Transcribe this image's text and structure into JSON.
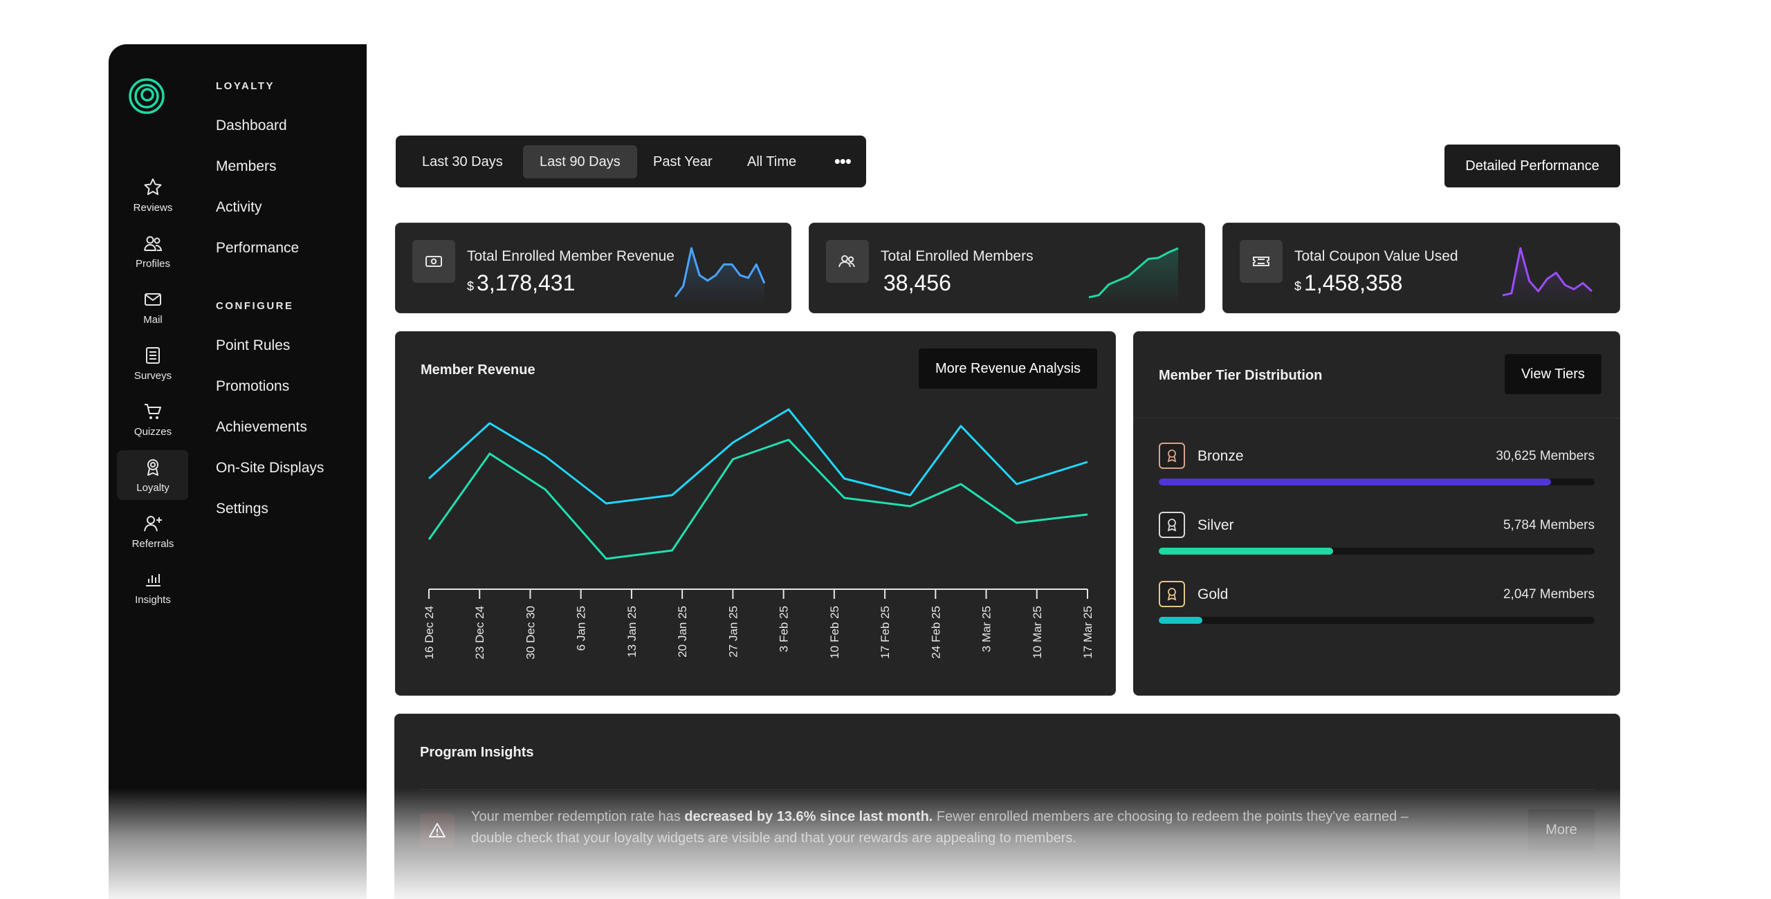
{
  "nav": {
    "rail": [
      {
        "label": "Reviews",
        "icon": "star-icon"
      },
      {
        "label": "Profiles",
        "icon": "users-icon"
      },
      {
        "label": "Mail",
        "icon": "mail-icon"
      },
      {
        "label": "Surveys",
        "icon": "survey-icon"
      },
      {
        "label": "Quizzes",
        "icon": "cart-icon"
      },
      {
        "label": "Loyalty",
        "icon": "award-icon",
        "active": true
      },
      {
        "label": "Referrals",
        "icon": "user-plus-icon"
      },
      {
        "label": "Insights",
        "icon": "bar-chart-icon"
      }
    ],
    "loyalty_heading": "LOYALTY",
    "loyalty_links": [
      "Dashboard",
      "Members",
      "Activity",
      "Performance"
    ],
    "configure_heading": "CONFIGURE",
    "configure_links": [
      "Point Rules",
      "Promotions",
      "Achievements",
      "On-Site Displays",
      "Settings"
    ]
  },
  "filters": {
    "options": [
      "Last  30 Days",
      "Last 90 Days",
      "Past Year",
      "All Time"
    ],
    "selected": "Last 90 Days",
    "more": "•••"
  },
  "header": {
    "detailed_button": "Detailed Performance"
  },
  "kpis": [
    {
      "label": "Total Enrolled Member Revenue",
      "currency": "$",
      "value": "3,178,431",
      "color": "#4aa3ff",
      "spark": [
        2,
        10,
        38,
        18,
        14,
        18,
        26,
        26,
        18,
        16,
        26,
        12
      ]
    },
    {
      "label": "Total Enrolled Members",
      "currency": "",
      "value": "38,456",
      "color": "#1fd8a4",
      "spark": [
        2,
        4,
        14,
        18,
        22,
        30,
        38,
        39,
        44,
        48
      ]
    },
    {
      "label": "Total Coupon Value Used",
      "currency": "$",
      "value": "1,458,358",
      "color": "#9b4dff",
      "spark": [
        4,
        6,
        50,
        18,
        8,
        20,
        26,
        14,
        10,
        16,
        8
      ]
    }
  ],
  "revenue": {
    "title": "Member Revenue",
    "button": "More Revenue Analysis"
  },
  "chart_data": {
    "type": "line",
    "title": "Member Revenue",
    "categories": [
      "16 Dec 24",
      "23 Dec 24",
      "30 Dec 30",
      "6 Jan 25",
      "13 Jan 25",
      "20 Jan 25",
      "27 Jan 25",
      "3 Feb 25",
      "10 Feb 25",
      "17 Feb 25",
      "24 Feb 25",
      "3 Mar 25",
      "10 Mar 25",
      "17 Mar 25"
    ],
    "series": [
      {
        "color": "#1fd8ff",
        "points": [
          [
            0,
            72
          ],
          [
            1.2,
            92
          ],
          [
            2.3,
            80
          ],
          [
            3.5,
            63
          ],
          [
            4.8,
            66
          ],
          [
            6,
            85
          ],
          [
            7.1,
            97
          ],
          [
            8.2,
            72
          ],
          [
            9.5,
            66
          ],
          [
            10.5,
            91
          ],
          [
            11.6,
            70
          ],
          [
            13,
            78
          ]
        ]
      },
      {
        "color": "#1fe0b0",
        "points": [
          [
            0,
            50
          ],
          [
            1.2,
            81
          ],
          [
            2.3,
            68
          ],
          [
            3.5,
            43
          ],
          [
            4.8,
            46
          ],
          [
            6,
            79
          ],
          [
            7.1,
            86
          ],
          [
            8.2,
            65
          ],
          [
            9.5,
            62
          ],
          [
            10.5,
            70
          ],
          [
            11.6,
            56
          ],
          [
            13,
            59
          ]
        ]
      }
    ]
  },
  "tiers": {
    "title": "Member Tier Distribution",
    "button": "View Tiers",
    "items": [
      {
        "name": "Bronze",
        "count": "30,625 Members",
        "share": 0.9,
        "color": "#4f35d8",
        "icon_color": "#d9a38a"
      },
      {
        "name": "Silver",
        "count": "5,784 Members",
        "share": 0.4,
        "color": "#1fd8a4",
        "icon_color": "#d8d8d8"
      },
      {
        "name": "Gold",
        "count": "2,047 Members",
        "share": 0.1,
        "color": "#17c4c4",
        "icon_color": "#e6c58a"
      }
    ]
  },
  "insights": {
    "title": "Program Insights",
    "text_before": "Your member redemption rate has ",
    "text_bold": "decreased by 13.6% since last month.",
    "text_after": " Fewer enrolled members are choosing to redeem the points they've earned – double check that your loyalty widgets are visible and that your rewards are appealing to members.",
    "button": "More"
  }
}
